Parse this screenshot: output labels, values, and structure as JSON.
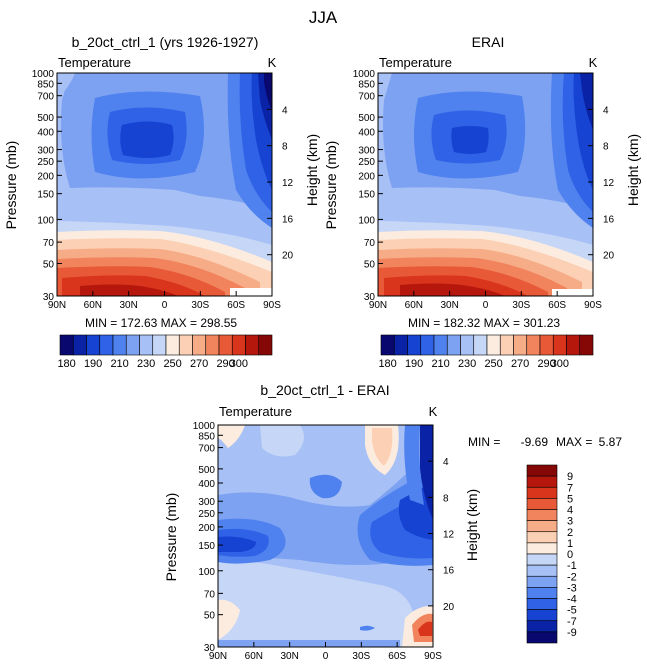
{
  "figure_title": "JJA",
  "colors": {
    "ramp": [
      "#08086e",
      "#0a22a6",
      "#1743d2",
      "#2f62e6",
      "#4f82ee",
      "#7ea2f2",
      "#a7c0f5",
      "#c6d6f7",
      "#fbecdf",
      "#fcd0b4",
      "#f7ac88",
      "#f1845d",
      "#e85a37",
      "#d9341c",
      "#b5170d",
      "#860806"
    ],
    "diff_ramp": [
      "#08086e",
      "#0a22a6",
      "#1743d2",
      "#2f62e6",
      "#4f82ee",
      "#7ea2f2",
      "#a7c0f5",
      "#c6d6f7",
      "#fbecdf",
      "#fcd0b4",
      "#f7ac88",
      "#f1845d",
      "#e85a37",
      "#d9341c",
      "#b5170d",
      "#860806"
    ]
  },
  "chart_data": [
    {
      "type": "heatmap",
      "title": "b_20ct_ctrl_1 (yrs 1926-1927)",
      "subtitle": "Temperature",
      "units": "K",
      "xlabel": "",
      "ylabel": "Pressure (mb)",
      "ylabel_right": "Height (km)",
      "x_ticks": [
        "90N",
        "60N",
        "30N",
        "0",
        "30S",
        "60S",
        "90S"
      ],
      "y_ticks": [
        "30",
        "50",
        "70",
        "100",
        "150",
        "200",
        "250",
        "300",
        "400",
        "500",
        "700",
        "850",
        "1000"
      ],
      "y_right_ticks": [
        "20",
        "16",
        "12",
        "8",
        "4"
      ],
      "ylim": [
        1000,
        30
      ],
      "ylog": true,
      "xlim": [
        90,
        -90
      ],
      "min_max_text": "MIN = 172.63 MAX = 298.55",
      "stats": {
        "min": 172.63,
        "max": 298.55
      },
      "levels": [
        180,
        190,
        200,
        210,
        220,
        230,
        240,
        250,
        260,
        270,
        280,
        290,
        300
      ],
      "colorbar_labels": [
        "180",
        "190",
        "210",
        "230",
        "250",
        "270",
        "290",
        "300"
      ]
    },
    {
      "type": "heatmap",
      "title": "ERAI",
      "subtitle": "Temperature",
      "units": "K",
      "xlabel": "",
      "ylabel": "Pressure (mb)",
      "ylabel_right": "Height (km)",
      "x_ticks": [
        "90N",
        "60N",
        "30N",
        "0",
        "30S",
        "60S",
        "90S"
      ],
      "y_ticks": [
        "30",
        "50",
        "70",
        "100",
        "150",
        "200",
        "250",
        "300",
        "400",
        "500",
        "700",
        "850",
        "1000"
      ],
      "y_right_ticks": [
        "20",
        "16",
        "12",
        "8",
        "4"
      ],
      "ylim": [
        1000,
        30
      ],
      "ylog": true,
      "xlim": [
        90,
        -90
      ],
      "min_max_text": "MIN = 182.32 MAX = 301.23",
      "stats": {
        "min": 182.32,
        "max": 301.23
      },
      "levels": [
        180,
        190,
        200,
        210,
        220,
        230,
        240,
        250,
        260,
        270,
        280,
        290,
        300
      ],
      "colorbar_labels": [
        "180",
        "190",
        "210",
        "230",
        "250",
        "270",
        "290",
        "300"
      ]
    },
    {
      "type": "heatmap",
      "title": "b_20ct_ctrl_1 - ERAI",
      "subtitle": "Temperature",
      "units": "K",
      "xlabel": "",
      "ylabel": "Pressure (mb)",
      "ylabel_right": "Height (km)",
      "x_ticks": [
        "90N",
        "60N",
        "30N",
        "0",
        "30S",
        "60S",
        "90S"
      ],
      "y_ticks": [
        "30",
        "50",
        "70",
        "100",
        "150",
        "200",
        "250",
        "300",
        "400",
        "500",
        "700",
        "850",
        "1000"
      ],
      "y_right_ticks": [
        "20",
        "16",
        "12",
        "8",
        "4"
      ],
      "ylim": [
        1000,
        30
      ],
      "ylog": true,
      "xlim": [
        90,
        -90
      ],
      "min_label": "MIN =",
      "min_value": "-9.69",
      "max_label": "MAX =",
      "max_value": "5.87",
      "stats": {
        "min": -9.69,
        "max": 5.87
      },
      "levels": [
        -9,
        -7,
        -5,
        -4,
        -3,
        -2,
        -1,
        0,
        1,
        2,
        3,
        4,
        5,
        7,
        9
      ],
      "colorbar_labels": [
        "9",
        "7",
        "5",
        "4",
        "3",
        "2",
        "1",
        "0",
        "-1",
        "-2",
        "-3",
        "-4",
        "-5",
        "-7",
        "-9"
      ]
    }
  ]
}
